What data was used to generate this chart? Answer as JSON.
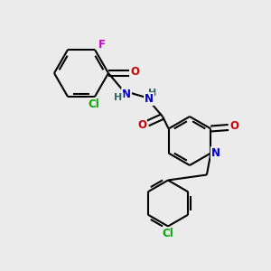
{
  "background_color": "#ebebeb",
  "atom_colors": {
    "C": "#000000",
    "N": "#0000cc",
    "O": "#cc0000",
    "Cl": "#00aa00",
    "F": "#cc00cc",
    "H": "#336666"
  },
  "bond_color": "#000000",
  "bond_width": 1.5,
  "font_size_atom": 8.5
}
